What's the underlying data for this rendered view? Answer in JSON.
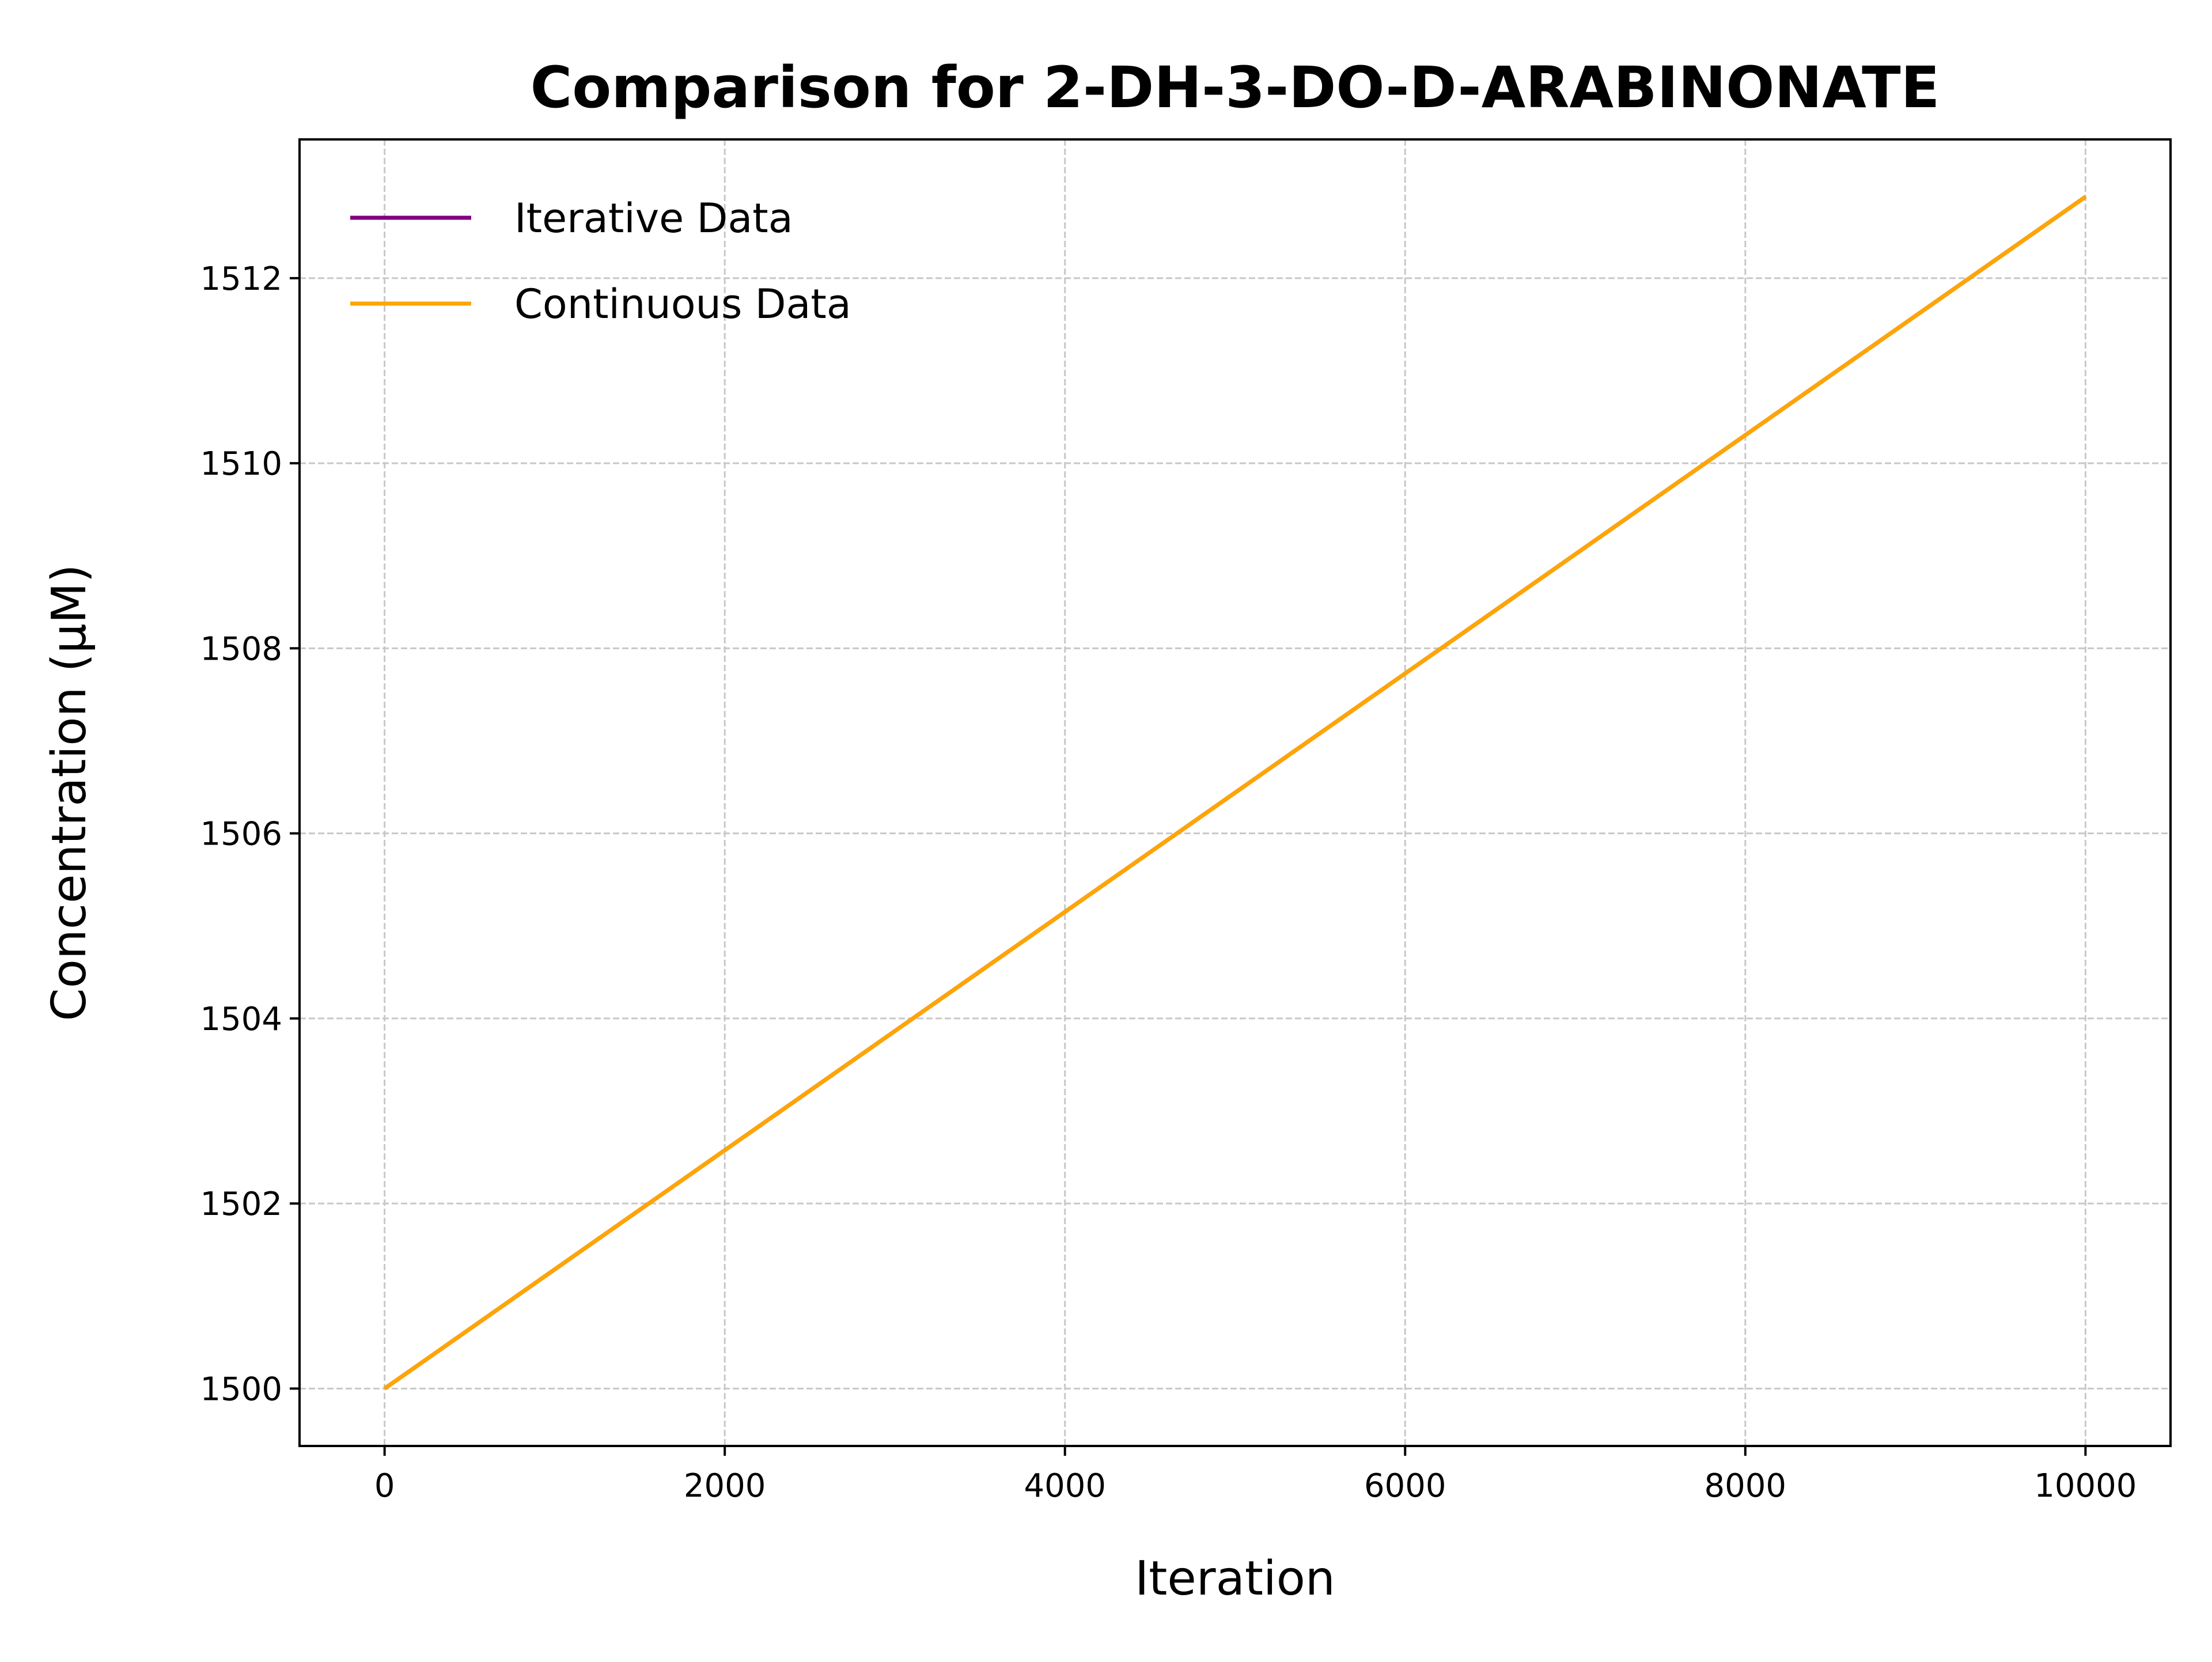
{
  "chart_data": {
    "type": "line",
    "title": "Comparison for 2-DH-3-DO-D-ARABINONATE",
    "xlabel": "Iteration",
    "ylabel": "Concentration (μM)",
    "xlim": [
      -500,
      10500
    ],
    "ylim": [
      1499.38,
      1513.5
    ],
    "xticks": [
      0,
      2000,
      4000,
      6000,
      8000,
      10000
    ],
    "xtick_labels": [
      "0",
      "2000",
      "4000",
      "6000",
      "8000",
      "10000"
    ],
    "yticks": [
      1500,
      1502,
      1504,
      1506,
      1508,
      1510,
      1512
    ],
    "ytick_labels": [
      "1500",
      "1502",
      "1504",
      "1506",
      "1508",
      "1510",
      "1512"
    ],
    "grid": true,
    "legend_position": "upper-left",
    "series": [
      {
        "name": "Iterative Data",
        "color": "#800080",
        "x": [
          0,
          10000
        ],
        "y": [
          1500.0,
          1512.88
        ]
      },
      {
        "name": "Continuous Data",
        "color": "#FFA500",
        "x": [
          0,
          10000
        ],
        "y": [
          1500.0,
          1512.88
        ]
      }
    ]
  }
}
